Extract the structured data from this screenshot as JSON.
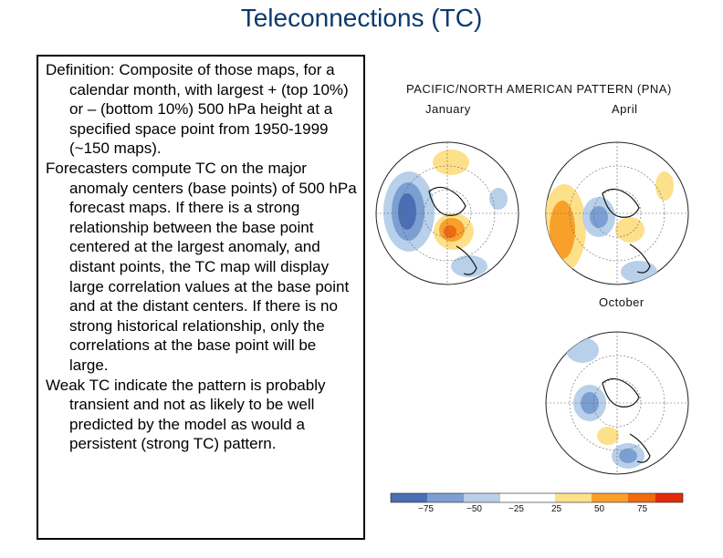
{
  "slide": {
    "title": "Teleconnections (TC)"
  },
  "definition": {
    "paragraphs": [
      "Definition:  Composite of those maps, for a calendar month, with largest + (top 10%) or – (bottom 10%) 500 hPa height at a specified space point from 1950-1999 (~150 maps).",
      "Forecasters compute TC on the major anomaly centers (base points) of 500 hPa forecast maps.  If there is a strong relationship between the base point centered at the largest anomaly, and distant points, the TC map will display large correlation values at the base point and at the distant centers.  If there is no strong historical relationship, only the correlations at the base point will be large.",
      "Weak TC indicate the pattern is probably transient and not as likely to be well predicted by the model as would a persistent (strong TC) pattern."
    ]
  },
  "figure": {
    "title": "PACIFIC/NORTH AMERICAN PATTERN (PNA)",
    "panels": [
      {
        "month": "January"
      },
      {
        "month": "April"
      },
      {
        "month": "October"
      }
    ],
    "colorbar": {
      "ticks": [
        "−75",
        "−50",
        "−25",
        "25",
        "50",
        "75"
      ],
      "colors": [
        "#4a6fb5",
        "#7c9fd3",
        "#b8d0ea",
        "#ffffff",
        "#fde08a",
        "#f8a02a",
        "#f06a10",
        "#e02a0a"
      ]
    }
  }
}
